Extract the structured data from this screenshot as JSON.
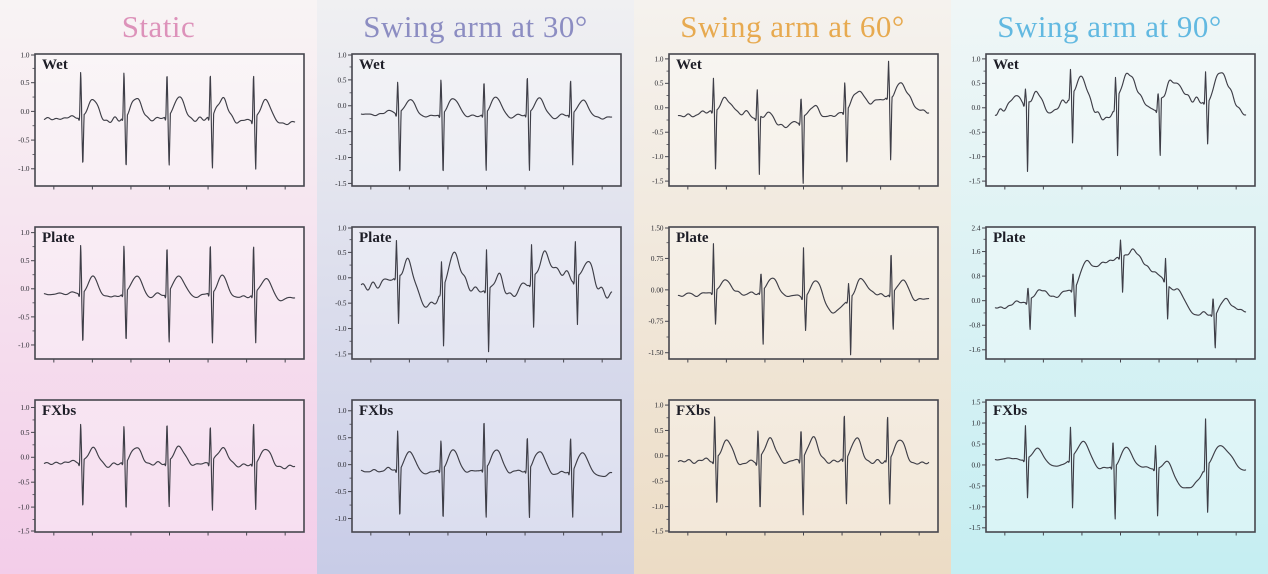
{
  "figure": {
    "columns": [
      {
        "title": "Static",
        "title_color": "#dd92ba",
        "bg_top": "#f8f4f4",
        "bg_bottom": "#f3cde9"
      },
      {
        "title": "Swing arm at 30°",
        "title_color": "#8c8dc2",
        "bg_top": "#f0f0f2",
        "bg_bottom": "#c8cce7"
      },
      {
        "title": "Swing arm at 60°",
        "title_color": "#e7aa50",
        "bg_top": "#f5f2ee",
        "bg_bottom": "#ecdcc5"
      },
      {
        "title": "Swing arm at 90°",
        "title_color": "#62b9e1",
        "bg_top": "#f0f6f6",
        "bg_bottom": "#c5eef2"
      }
    ],
    "rows": [
      "Wet",
      "Plate",
      "FXbs"
    ],
    "plot_style": {
      "line_color": "#3e3e47",
      "border_color": "#46464e",
      "tick_text_color": "#25252c",
      "x_axis_label": "",
      "y_axis_label": "",
      "x_tick_labels": "none (unlabeled time axis)",
      "grid": false,
      "legend": false
    }
  },
  "chart_data": [
    {
      "type": "line",
      "column": "Static",
      "row": "Wet",
      "label": "Wet",
      "yticks": [
        "1.0",
        "0.5",
        "0.0",
        "-0.5",
        "-1.0"
      ],
      "ylim": [
        -1.3,
        1.0
      ],
      "beats_x": [
        0.145,
        0.318,
        0.49,
        0.663,
        0.836
      ],
      "r": [
        0.82,
        0.82,
        0.8,
        0.82,
        0.84
      ],
      "s": [
        -0.92,
        -0.95,
        -0.93,
        -0.95,
        -0.95
      ],
      "t_amp": 0.34,
      "baseline": -0.07,
      "noise": 0.018,
      "wander": [
        [
          0,
          -0.06
        ],
        [
          0.5,
          0.0
        ],
        [
          1,
          -0.06
        ]
      ]
    },
    {
      "type": "line",
      "column": "Static",
      "row": "Plate",
      "label": "Plate",
      "yticks": [
        "1.0",
        "0.5",
        "0.0",
        "-0.5",
        "-1.0"
      ],
      "ylim": [
        -1.25,
        1.1
      ],
      "beats_x": [
        0.145,
        0.318,
        0.49,
        0.663,
        0.836
      ],
      "r": [
        0.92,
        0.9,
        0.9,
        0.93,
        0.92
      ],
      "s": [
        -0.95,
        -0.95,
        -0.97,
        -0.95,
        -0.95
      ],
      "t_amp": 0.3,
      "baseline": -0.05,
      "noise": 0.018,
      "wander": [
        [
          0,
          -0.05
        ],
        [
          0.5,
          0.0
        ],
        [
          1,
          -0.05
        ]
      ]
    },
    {
      "type": "line",
      "column": "Static",
      "row": "FXbs",
      "label": "FXbs",
      "yticks": [
        "1.0",
        "0.5",
        "0.0",
        "-0.5",
        "-1.0",
        "-1.5"
      ],
      "ylim": [
        -1.5,
        1.15
      ],
      "beats_x": [
        0.145,
        0.318,
        0.49,
        0.663,
        0.836
      ],
      "r": [
        0.82,
        0.78,
        0.82,
        0.8,
        0.87
      ],
      "s": [
        -1.0,
        -1.02,
        -1.0,
        -1.05,
        -0.98
      ],
      "t_amp": 0.3,
      "baseline": -0.07,
      "noise": 0.018,
      "wander": [
        [
          0,
          -0.05
        ],
        [
          0.5,
          0.0
        ],
        [
          1,
          -0.05
        ]
      ]
    },
    {
      "type": "line",
      "column": "Swing arm at 30°",
      "row": "Wet",
      "label": "Wet",
      "yticks": [
        "1.0",
        "0.5",
        "0.0",
        "-0.5",
        "-1.0",
        "-1.5"
      ],
      "ylim": [
        -1.55,
        1.0
      ],
      "beats_x": [
        0.145,
        0.318,
        0.49,
        0.663,
        0.836
      ],
      "r": [
        0.65,
        0.72,
        0.66,
        0.75,
        0.7
      ],
      "s": [
        -1.27,
        -1.25,
        -1.2,
        -1.2,
        -1.05
      ],
      "t_amp": 0.3,
      "baseline": -0.13,
      "noise": 0.022,
      "wander": [
        [
          0,
          -0.03
        ],
        [
          0.5,
          0.0
        ],
        [
          1,
          -0.03
        ]
      ]
    },
    {
      "type": "line",
      "column": "Swing arm at 30°",
      "row": "Plate",
      "label": "Plate",
      "yticks": [
        "1.0",
        "0.5",
        "0.0",
        "-0.5",
        "-1.0",
        "-1.5"
      ],
      "ylim": [
        -1.6,
        1.0
      ],
      "beats_x": [
        0.14,
        0.32,
        0.5,
        0.68,
        0.855
      ],
      "r": [
        0.7,
        0.55,
        0.8,
        0.72,
        0.8
      ],
      "s": [
        -1.0,
        -1.25,
        -1.3,
        -1.05,
        -0.95
      ],
      "t_amp": 0.42,
      "baseline": -0.1,
      "noise": 0.05,
      "wander": [
        [
          0,
          -0.08
        ],
        [
          0.17,
          0.08
        ],
        [
          0.27,
          -0.4
        ],
        [
          0.38,
          0.18
        ],
        [
          0.47,
          -0.1
        ],
        [
          0.56,
          -0.28
        ],
        [
          0.66,
          0.0
        ],
        [
          0.78,
          0.3
        ],
        [
          0.88,
          0.05
        ],
        [
          1,
          -0.15
        ]
      ]
    },
    {
      "type": "line",
      "column": "Swing arm at 30°",
      "row": "FXbs",
      "label": "FXbs",
      "yticks": [
        "1.0",
        "0.5",
        "0.0",
        "-0.5",
        "-1.0"
      ],
      "ylim": [
        -1.25,
        1.2
      ],
      "beats_x": [
        0.145,
        0.318,
        0.49,
        0.663,
        0.836
      ],
      "r": [
        0.78,
        0.58,
        0.95,
        0.64,
        0.68
      ],
      "s": [
        -0.93,
        -1.0,
        -1.0,
        -0.97,
        -0.9
      ],
      "t_amp": 0.36,
      "baseline": -0.08,
      "noise": 0.02,
      "wander": [
        [
          0,
          -0.04
        ],
        [
          0.5,
          0.02
        ],
        [
          1,
          -0.04
        ]
      ]
    },
    {
      "type": "line",
      "column": "Swing arm at 60°",
      "row": "Wet",
      "label": "Wet",
      "yticks": [
        "1.0",
        "0.5",
        "0.0",
        "-0.5",
        "-1.0",
        "-1.5"
      ],
      "ylim": [
        -1.6,
        1.1
      ],
      "beats_x": [
        0.14,
        0.315,
        0.49,
        0.665,
        0.84
      ],
      "r": [
        0.68,
        0.6,
        0.5,
        0.62,
        0.72
      ],
      "s": [
        -1.25,
        -1.2,
        -1.45,
        -1.2,
        -1.35
      ],
      "t_amp": 0.26,
      "baseline": -0.05,
      "noise": 0.03,
      "wander": [
        [
          0,
          -0.12
        ],
        [
          0.25,
          0.02
        ],
        [
          0.38,
          -0.3
        ],
        [
          0.5,
          -0.18
        ],
        [
          0.62,
          -0.05
        ],
        [
          0.78,
          0.25
        ],
        [
          0.9,
          0.3
        ],
        [
          1,
          0.02
        ]
      ]
    },
    {
      "type": "line",
      "column": "Swing arm at 60°",
      "row": "Plate",
      "label": "Plate",
      "yticks": [
        "1.50",
        "0.75",
        "0.00",
        "-0.75",
        "-1.50"
      ],
      "ylim": [
        -1.65,
        1.5
      ],
      "beats_x": [
        0.14,
        0.33,
        0.5,
        0.68,
        0.85
      ],
      "r": [
        1.15,
        0.45,
        1.2,
        0.38,
        1.05
      ],
      "s": [
        -0.85,
        -1.4,
        -0.85,
        -1.45,
        -0.95
      ],
      "t_amp": 0.35,
      "baseline": -0.08,
      "noise": 0.04,
      "wander": [
        [
          0,
          -0.05
        ],
        [
          0.3,
          0.05
        ],
        [
          0.55,
          -0.05
        ],
        [
          0.62,
          -0.35
        ],
        [
          0.75,
          0.05
        ],
        [
          1,
          -0.08
        ]
      ]
    },
    {
      "type": "line",
      "column": "Swing arm at 60°",
      "row": "FXbs",
      "label": "FXbs",
      "yticks": [
        "1.0",
        "0.5",
        "0.0",
        "-0.5",
        "-1.0",
        "-1.5"
      ],
      "ylim": [
        -1.5,
        1.1
      ],
      "beats_x": [
        0.145,
        0.318,
        0.49,
        0.663,
        0.836
      ],
      "r": [
        0.9,
        0.65,
        0.65,
        0.95,
        0.9
      ],
      "s": [
        -1.0,
        -1.1,
        -1.2,
        -0.95,
        -0.95
      ],
      "t_amp": 0.42,
      "baseline": -0.05,
      "noise": 0.022,
      "wander": [
        [
          0,
          -0.06
        ],
        [
          0.5,
          0.0
        ],
        [
          1,
          -0.02
        ]
      ]
    },
    {
      "type": "line",
      "column": "Swing arm at 90°",
      "row": "Wet",
      "label": "Wet",
      "yticks": [
        "1.0",
        "0.5",
        "0.0",
        "-0.5",
        "-1.0",
        "-1.5"
      ],
      "ylim": [
        -1.6,
        1.1
      ],
      "beats_x": [
        0.12,
        0.3,
        0.48,
        0.65,
        0.84
      ],
      "r": [
        0.3,
        0.5,
        0.55,
        0.3,
        0.62
      ],
      "s": [
        -1.5,
        -1.1,
        -1.25,
        -1.2,
        -0.9
      ],
      "t_amp": 0.3,
      "baseline": 0.0,
      "noise": 0.06,
      "wander": [
        [
          0,
          -0.15
        ],
        [
          0.08,
          0.18
        ],
        [
          0.2,
          -0.05
        ],
        [
          0.33,
          0.33
        ],
        [
          0.44,
          -0.15
        ],
        [
          0.54,
          0.45
        ],
        [
          0.64,
          0.02
        ],
        [
          0.74,
          0.42
        ],
        [
          0.84,
          0.08
        ],
        [
          0.92,
          0.55
        ],
        [
          1,
          -0.12
        ]
      ]
    },
    {
      "type": "line",
      "column": "Swing arm at 90°",
      "row": "Plate",
      "label": "Plate",
      "yticks": [
        "2.4",
        "1.6",
        "0.8",
        "0.0",
        "-0.8",
        "-1.6"
      ],
      "ylim": [
        -1.9,
        2.4
      ],
      "beats_x": [
        0.13,
        0.31,
        0.5,
        0.68,
        0.87
      ],
      "r": [
        0.5,
        0.6,
        0.6,
        0.8,
        0.6
      ],
      "s": [
        -1.05,
        -1.0,
        -1.2,
        -1.15,
        -1.15
      ],
      "t_amp": 0.28,
      "baseline": 0.0,
      "noise": 0.035,
      "wander": [
        [
          0,
          -0.25
        ],
        [
          0.12,
          -0.05
        ],
        [
          0.2,
          0.15
        ],
        [
          0.3,
          0.35
        ],
        [
          0.38,
          1.1
        ],
        [
          0.45,
          1.35
        ],
        [
          0.52,
          1.4
        ],
        [
          0.58,
          1.35
        ],
        [
          0.65,
          0.9
        ],
        [
          0.72,
          0.15
        ],
        [
          0.8,
          -0.35
        ],
        [
          0.87,
          -0.45
        ],
        [
          0.93,
          -0.2
        ],
        [
          1,
          -0.25
        ]
      ]
    },
    {
      "type": "line",
      "column": "Swing arm at 90°",
      "row": "FXbs",
      "label": "FXbs",
      "yticks": [
        "1.5",
        "1.0",
        "0.5",
        "0.0",
        "-0.5",
        "-1.0",
        "-1.5"
      ],
      "ylim": [
        -1.6,
        1.55
      ],
      "beats_x": [
        0.12,
        0.3,
        0.47,
        0.64,
        0.84
      ],
      "r": [
        0.8,
        0.75,
        0.65,
        0.55,
        1.15
      ],
      "s": [
        -1.0,
        -1.3,
        -1.35,
        -1.2,
        -1.2
      ],
      "t_amp": 0.36,
      "baseline": 0.05,
      "noise": 0.032,
      "wander": [
        [
          0,
          0.1
        ],
        [
          0.25,
          0.0
        ],
        [
          0.35,
          0.18
        ],
        [
          0.45,
          -0.1
        ],
        [
          0.55,
          0.05
        ],
        [
          0.63,
          -0.1
        ],
        [
          0.72,
          -0.42
        ],
        [
          0.78,
          -0.55
        ],
        [
          0.85,
          -0.1
        ],
        [
          0.93,
          0.25
        ],
        [
          1,
          -0.12
        ]
      ]
    }
  ]
}
